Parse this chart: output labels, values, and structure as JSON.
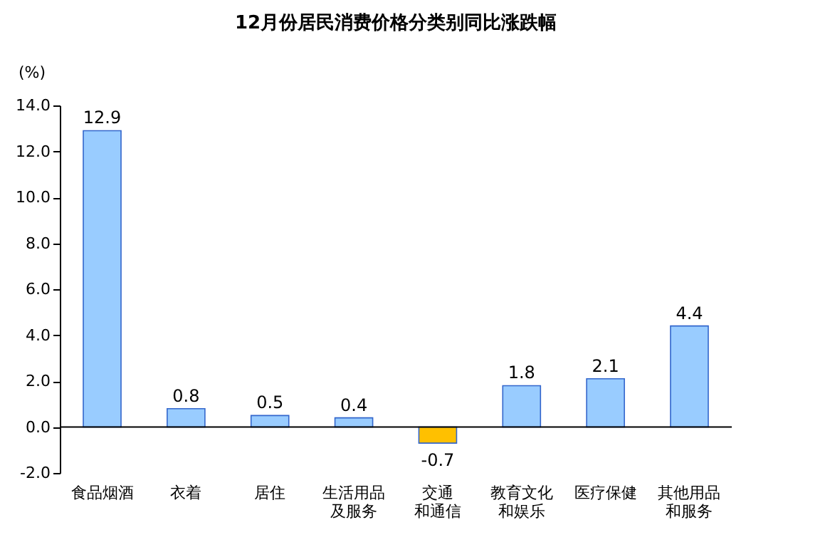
{
  "chart_data": {
    "type": "bar",
    "title": "12月份居民消费价格分类别同比涨跌幅",
    "ylabel": "(%)",
    "categories": [
      "食品烟酒",
      "衣着",
      "居住",
      "生活用品及服务",
      "交通和通信",
      "教育文化和娱乐",
      "医疗保健",
      "其他用品和服务"
    ],
    "values": [
      12.9,
      0.8,
      0.5,
      0.4,
      -0.7,
      1.8,
      2.1,
      4.4
    ],
    "colors": [
      "#99ccff",
      "#99ccff",
      "#99ccff",
      "#99ccff",
      "#ffc000",
      "#99ccff",
      "#99ccff",
      "#99ccff"
    ],
    "ylim": [
      -2,
      14
    ],
    "yticks": [
      {
        "value": -2,
        "label": "-2.0"
      },
      {
        "value": 0,
        "label": "0.0"
      },
      {
        "value": 2,
        "label": "2.0"
      },
      {
        "value": 4,
        "label": "4.0"
      },
      {
        "value": 6,
        "label": "6.0"
      },
      {
        "value": 8,
        "label": "8.0"
      },
      {
        "value": 10,
        "label": "10.0"
      },
      {
        "value": 12,
        "label": "12.0"
      },
      {
        "value": 14,
        "label": "14.0"
      }
    ],
    "ref_lines": [
      {
        "axis": "y",
        "value": 0,
        "color": "#000000"
      }
    ],
    "data_labels": true,
    "grid": false
  }
}
